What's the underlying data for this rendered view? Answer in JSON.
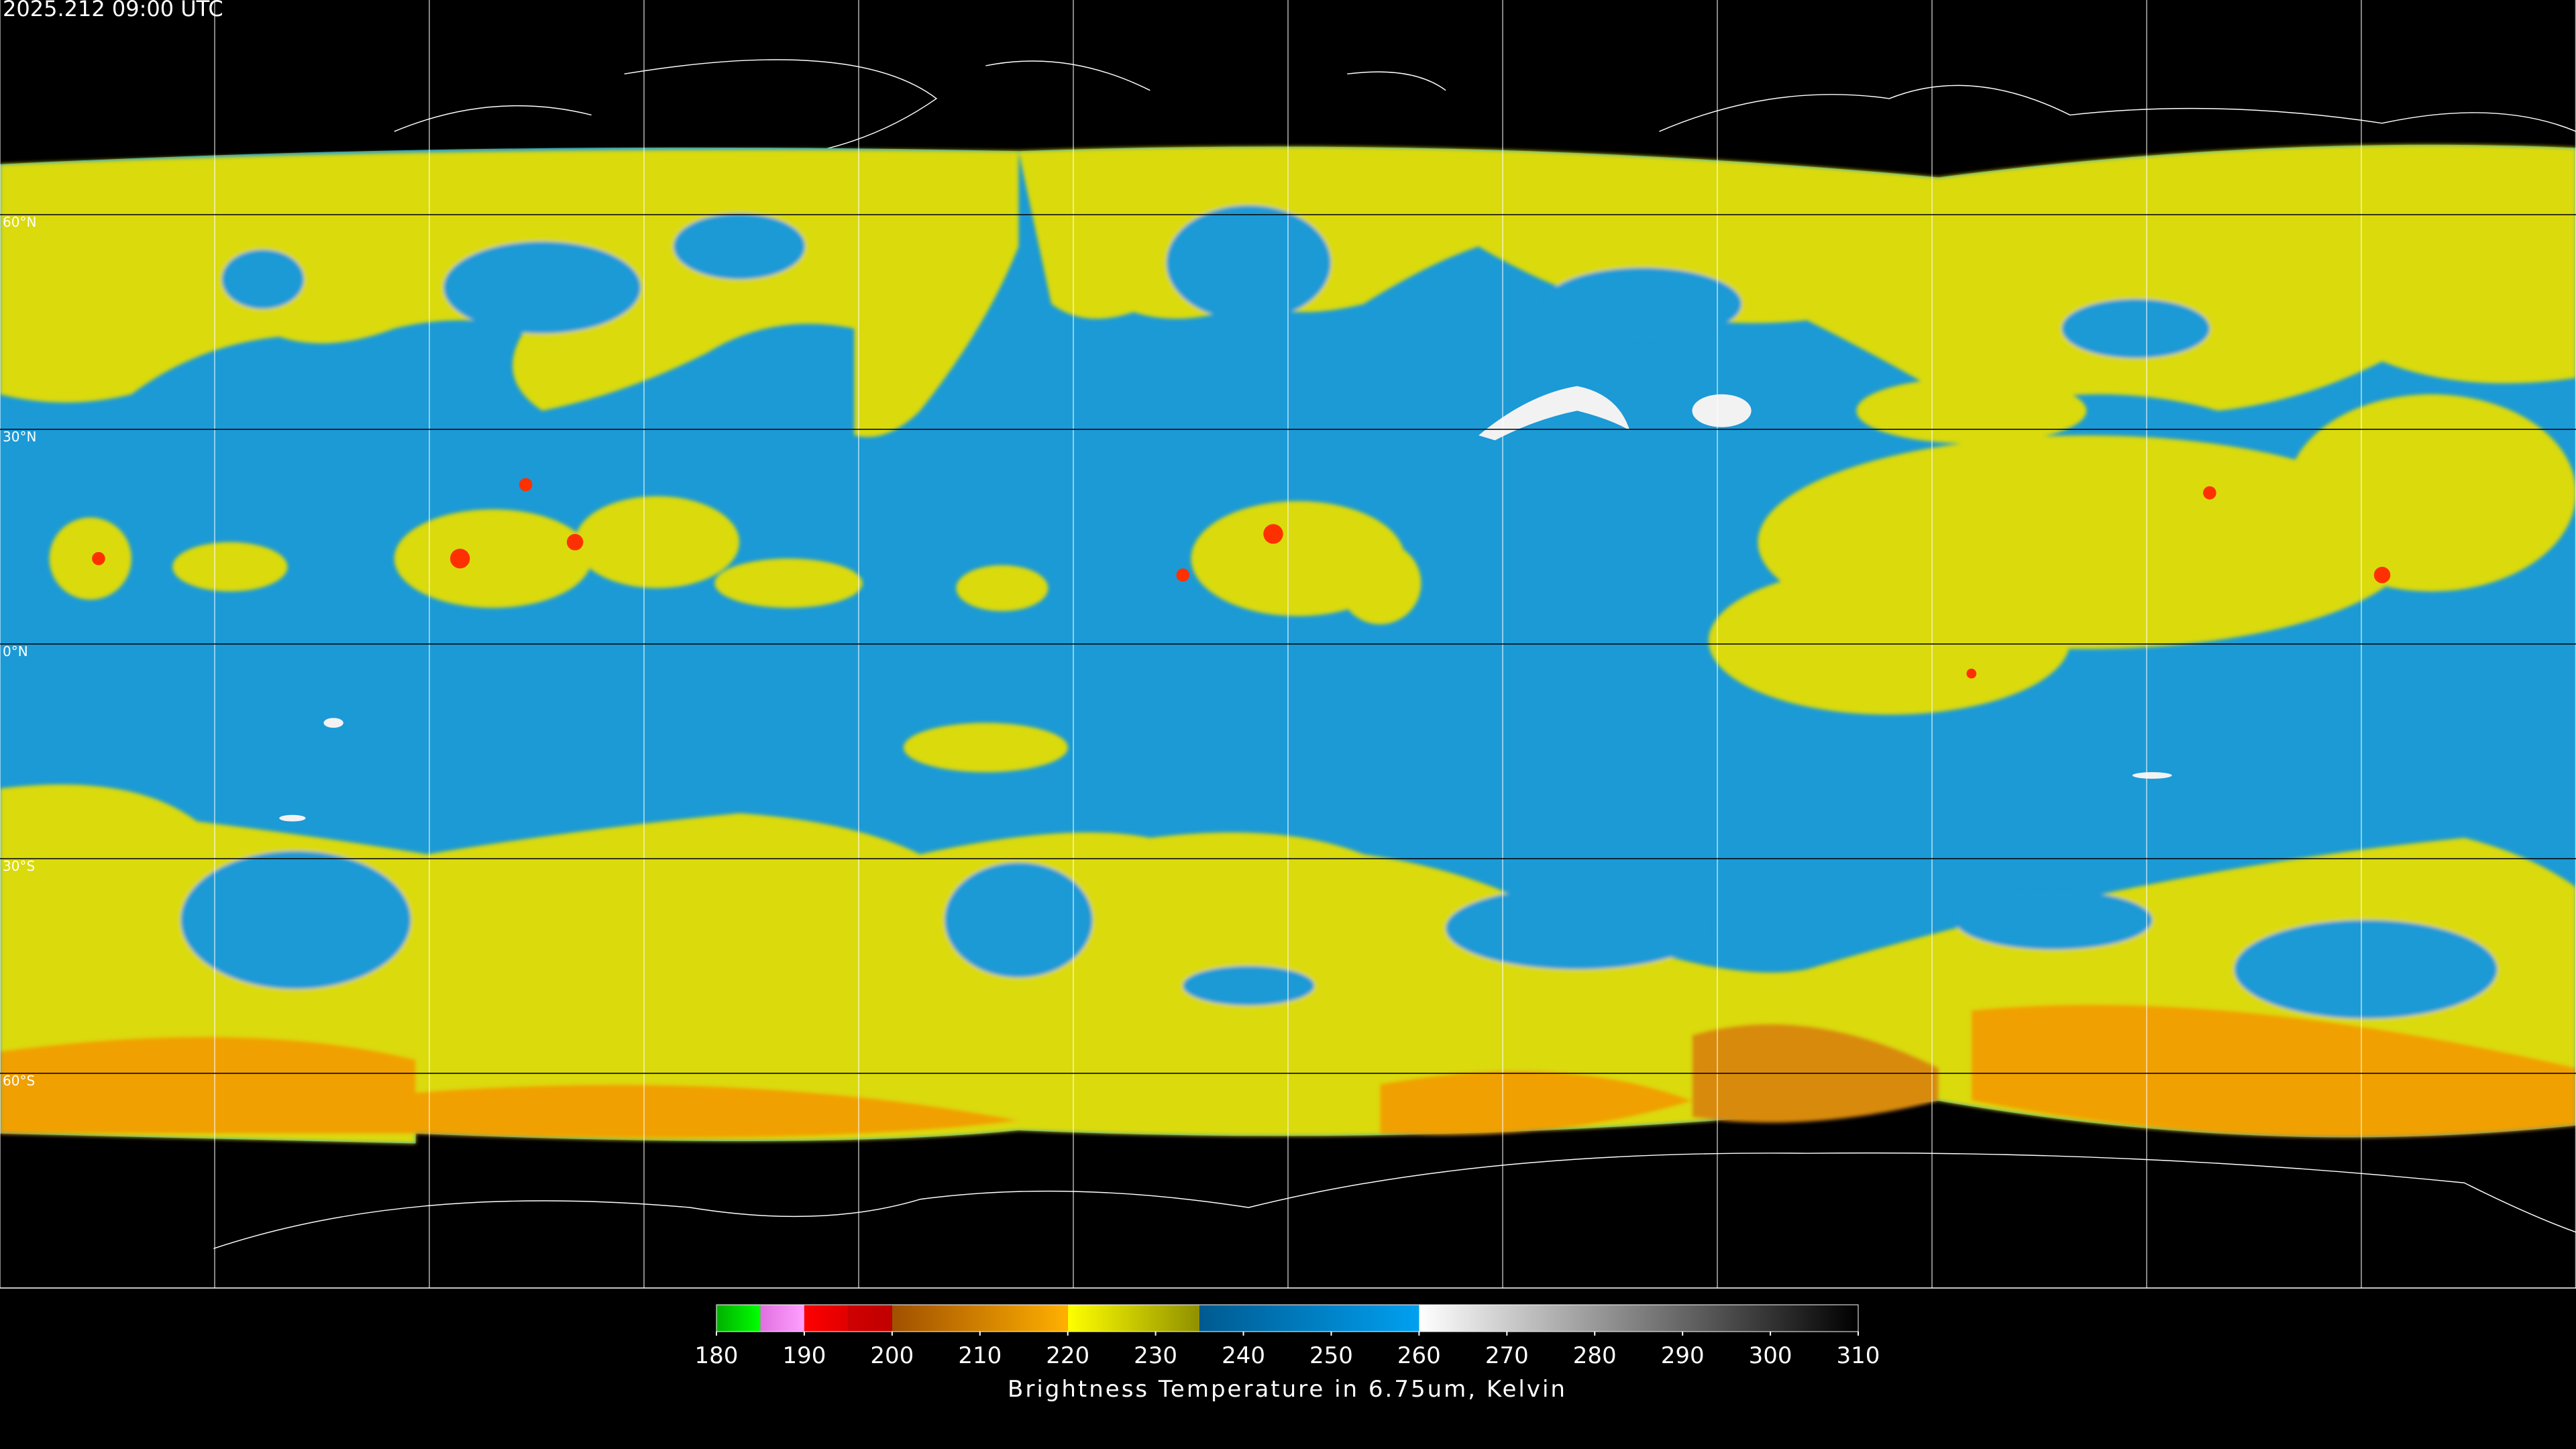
{
  "header": {
    "title": "2025.212 09:00 UTC"
  },
  "map": {
    "latitudes": [
      {
        "value": 60,
        "label": "60°N"
      },
      {
        "value": 30,
        "label": "30°N"
      },
      {
        "value": 0,
        "label": "0°N"
      },
      {
        "value": -30,
        "label": "30°S"
      },
      {
        "value": -60,
        "label": "60°S"
      }
    ]
  },
  "colorbar": {
    "range": [
      180,
      310
    ],
    "ticks": [
      180,
      190,
      200,
      210,
      220,
      230,
      240,
      250,
      260,
      270,
      280,
      290,
      300,
      310
    ],
    "segments": [
      {
        "from": 180,
        "to": 185,
        "colors": [
          "#00b000",
          "#00ff00"
        ]
      },
      {
        "from": 185,
        "to": 190,
        "colors": [
          "#e070e0",
          "#ffa0ff"
        ]
      },
      {
        "from": 190,
        "to": 195,
        "colors": [
          "#ff0000",
          "#e00000"
        ]
      },
      {
        "from": 195,
        "to": 200,
        "colors": [
          "#d00000",
          "#c00000"
        ]
      },
      {
        "from": 200,
        "to": 220,
        "colors": [
          "#a05000",
          "#ffb000"
        ]
      },
      {
        "from": 220,
        "to": 235,
        "colors": [
          "#ffff00",
          "#909000"
        ]
      },
      {
        "from": 235,
        "to": 260,
        "colors": [
          "#005a90",
          "#00a0f0"
        ]
      },
      {
        "from": 260,
        "to": 310,
        "colors": [
          "#ffffff",
          "#000000"
        ]
      }
    ],
    "caption": "Brightness Temperature in 6.75um, Kelvin"
  }
}
